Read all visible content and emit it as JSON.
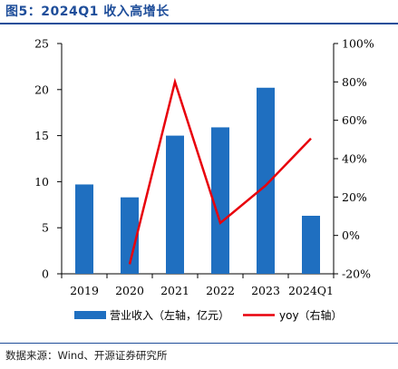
{
  "header": {
    "title": "图5：2024Q1 收入高增长"
  },
  "footer": {
    "source": "数据来源：Wind、开源证券研究所"
  },
  "chart_data": {
    "type": "bar",
    "categories": [
      "2019",
      "2020",
      "2021",
      "2022",
      "2023",
      "2024Q1"
    ],
    "series": [
      {
        "name": "营业收入（左轴，亿元）",
        "type": "bar",
        "axis": "left",
        "color": "#1f6fc0",
        "values": [
          9.7,
          8.3,
          15.0,
          15.9,
          20.2,
          6.3
        ]
      },
      {
        "name": "yoy（右轴）",
        "type": "line",
        "axis": "right",
        "color": "#e8000b",
        "values": [
          null,
          -15,
          80,
          6.5,
          26,
          50.5
        ]
      }
    ],
    "ylim_left": [
      0,
      25
    ],
    "yticks_left": [
      "0",
      "5",
      "10",
      "15",
      "20",
      "25"
    ],
    "ylim_right": [
      -20,
      100
    ],
    "yticks_right": [
      "-20%",
      "0%",
      "20%",
      "40%",
      "60%",
      "80%",
      "100%"
    ],
    "grid": false,
    "legend_position": "bottom"
  }
}
